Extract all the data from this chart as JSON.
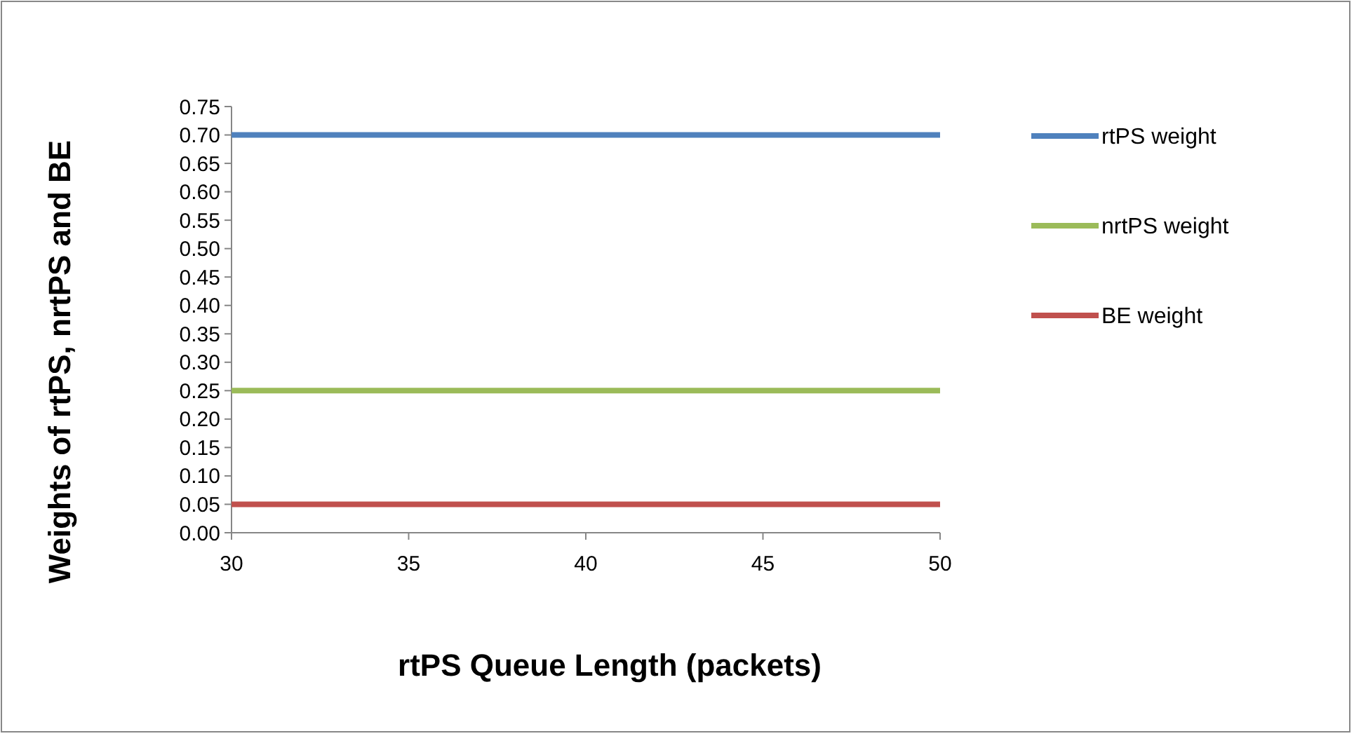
{
  "chart_data": {
    "type": "line",
    "xlabel": "rtPS Queue Length (packets)",
    "ylabel": "Weights of rtPS, nrtPS and BE",
    "x": [
      30,
      50
    ],
    "series": [
      {
        "name": "rtPS weight",
        "color": "#4f81bd",
        "values": [
          0.7,
          0.7
        ]
      },
      {
        "name": "nrtPS weight",
        "color": "#9bbb59",
        "values": [
          0.25,
          0.25
        ]
      },
      {
        "name": "BE weight",
        "color": "#c0504d",
        "values": [
          0.05,
          0.05
        ]
      }
    ],
    "xlim": [
      30,
      50
    ],
    "xticks": [
      30,
      35,
      40,
      45,
      50
    ],
    "ylim": [
      0,
      0.75
    ],
    "yticks": [
      {
        "value": 0,
        "label": "0.00"
      },
      {
        "value": 0.05,
        "label": "0.05"
      },
      {
        "value": 0.1,
        "label": "0.10"
      },
      {
        "value": 0.15,
        "label": "0.15"
      },
      {
        "value": 0.2,
        "label": "0.20"
      },
      {
        "value": 0.25,
        "label": "0.25"
      },
      {
        "value": 0.3,
        "label": "0.30"
      },
      {
        "value": 0.35,
        "label": "0.35"
      },
      {
        "value": 0.4,
        "label": "0.40"
      },
      {
        "value": 0.45,
        "label": "0.45"
      },
      {
        "value": 0.5,
        "label": "0.50"
      },
      {
        "value": 0.55,
        "label": "0.55"
      },
      {
        "value": 0.6,
        "label": "0.60"
      },
      {
        "value": 0.65,
        "label": "0.65"
      },
      {
        "value": 0.7,
        "label": "0.70"
      },
      {
        "value": 0.75,
        "label": "0.75"
      }
    ],
    "grid": false,
    "legend": "right",
    "marker": "none",
    "line_style": "solid"
  }
}
